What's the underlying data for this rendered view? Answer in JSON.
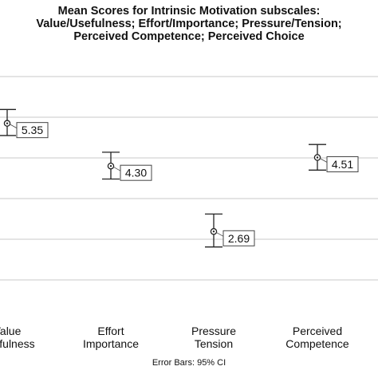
{
  "chart_data": {
    "type": "error-bar",
    "title_lines": [
      "Mean Scores for Intrinsic Motivation subscales:",
      "Value/Usefulness; Effort/Importance;  Pressure/Tension;",
      "Perceived Competence; Perceived Choice"
    ],
    "categories": [
      [
        "Value",
        "Usefulness"
      ],
      [
        "Effort",
        "Importance"
      ],
      [
        "Pressure",
        "Tension"
      ],
      [
        "Perceived",
        "Competence"
      ]
    ],
    "means": [
      5.35,
      4.3,
      2.69,
      4.51
    ],
    "mean_labels": [
      "5.35",
      "4.30",
      "2.69",
      "4.51"
    ],
    "ci_lower": [
      5.05,
      3.98,
      2.31,
      4.2
    ],
    "ci_upper": [
      5.69,
      4.64,
      3.12,
      4.83
    ],
    "ylim": [
      0.8,
      6.5
    ],
    "gridlines": [
      1.5,
      2.5,
      3.5,
      4.5,
      5.5,
      6.5
    ],
    "grid": true,
    "footnote": "Error Bars: 95% CI"
  }
}
